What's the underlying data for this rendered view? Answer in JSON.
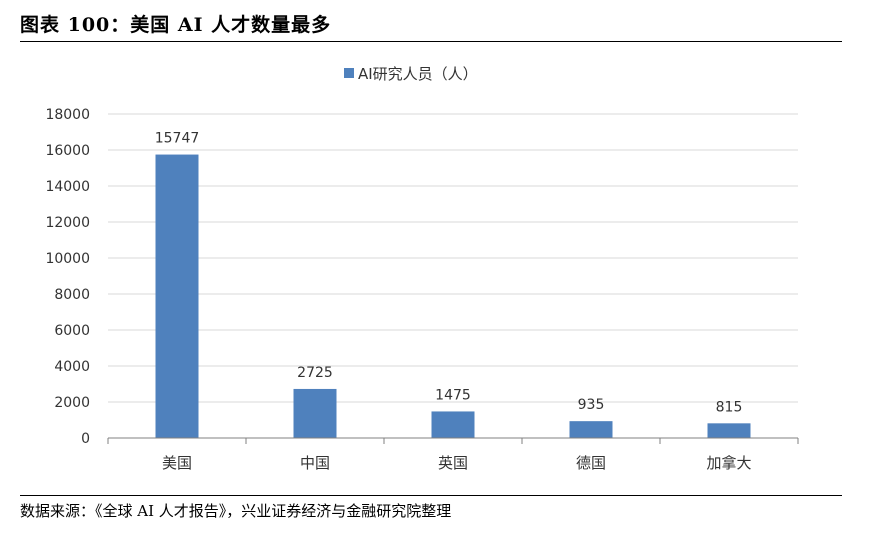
{
  "figure": {
    "title": "图表 100：美国 AI 人才数量最多",
    "source": "数据来源：《全球 AI 人才报告》，兴业证券经济与金融研究院整理"
  },
  "colors": {
    "bar": "#4f81bd",
    "grid": "#d9d9d9",
    "axis": "#808080",
    "text": "#333333"
  },
  "chart_data": {
    "type": "bar",
    "categories": [
      "美国",
      "中国",
      "英国",
      "德国",
      "加拿大"
    ],
    "series": [
      {
        "name": "AI研究人员（人）",
        "values": [
          15747,
          2725,
          1475,
          935,
          815
        ]
      }
    ],
    "data_labels": [
      "15747",
      "2725",
      "1475",
      "935",
      "815"
    ],
    "y_ticks": [
      0,
      2000,
      4000,
      6000,
      8000,
      10000,
      12000,
      14000,
      16000,
      18000
    ],
    "ylim": [
      0,
      18000
    ],
    "grid": true,
    "legend_position": "top-center"
  }
}
